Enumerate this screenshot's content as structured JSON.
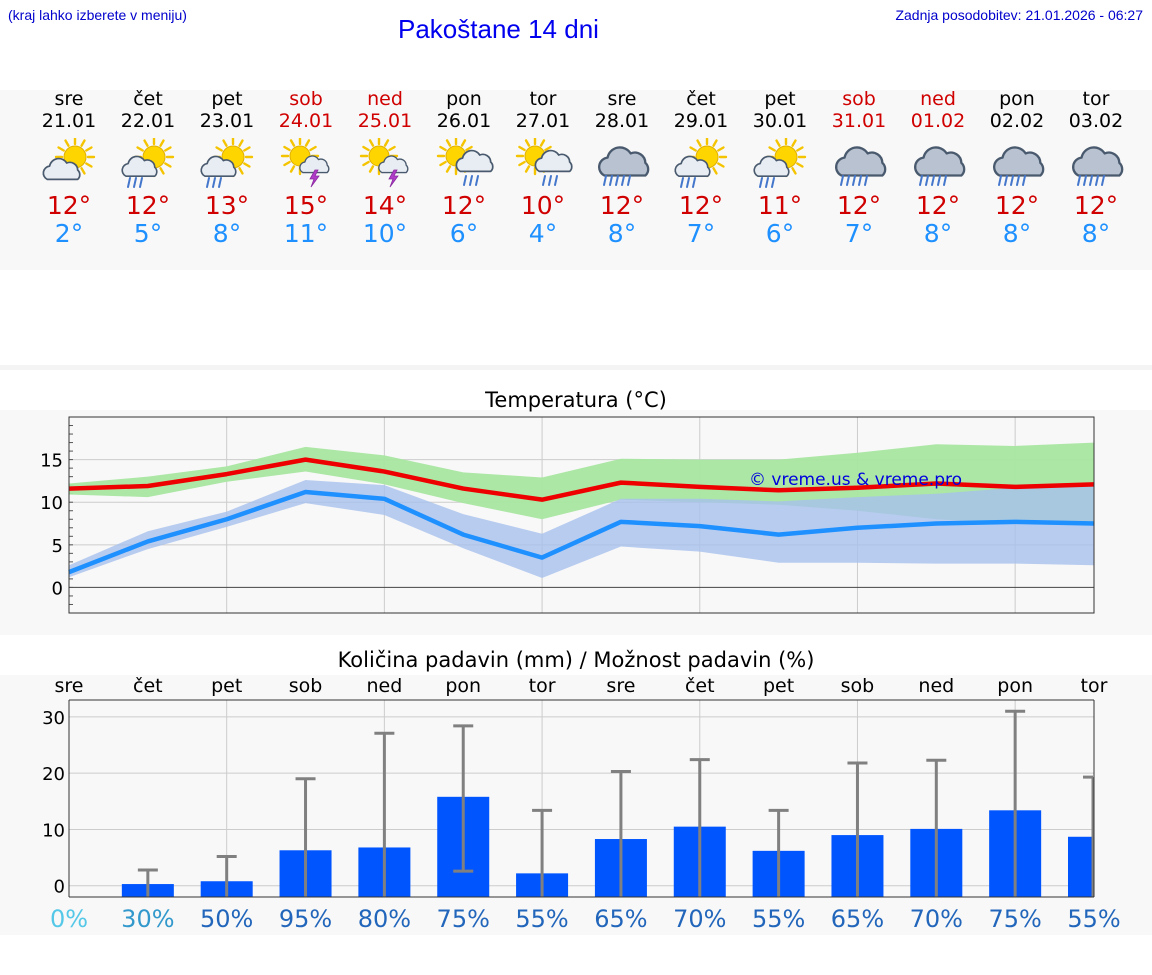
{
  "header": {
    "hint": "(kraj lahko izberete v meniju)",
    "title": "Pakoštane 14 dni",
    "updated": "Zadnja posodobitev: 21.01.2026 - 06:27"
  },
  "colors": {
    "max_line": "#ee0000",
    "min_line": "#1e90ff",
    "max_band": "#a8e6a0",
    "min_band": "#a8c0ee",
    "bar": "#0055ff",
    "weekend": "#d00000"
  },
  "days": [
    {
      "name": "sre",
      "date": "21.01",
      "weekend": false,
      "icon": "partly-cloudy-icon",
      "max": "12°",
      "min": "2°"
    },
    {
      "name": "čet",
      "date": "22.01",
      "weekend": false,
      "icon": "partly-cloudy-rain-icon",
      "max": "12°",
      "min": "5°"
    },
    {
      "name": "pet",
      "date": "23.01",
      "weekend": false,
      "icon": "partly-cloudy-rain-icon",
      "max": "13°",
      "min": "8°"
    },
    {
      "name": "sob",
      "date": "24.01",
      "weekend": true,
      "icon": "sun-thunderstorm-icon",
      "max": "15°",
      "min": "11°"
    },
    {
      "name": "ned",
      "date": "25.01",
      "weekend": true,
      "icon": "sun-thunderstorm-icon",
      "max": "14°",
      "min": "10°"
    },
    {
      "name": "pon",
      "date": "26.01",
      "weekend": false,
      "icon": "sun-cloud-rain-icon",
      "max": "12°",
      "min": "6°"
    },
    {
      "name": "tor",
      "date": "27.01",
      "weekend": false,
      "icon": "sun-cloud-rain-icon",
      "max": "10°",
      "min": "4°"
    },
    {
      "name": "sre",
      "date": "28.01",
      "weekend": false,
      "icon": "cloud-rain-icon",
      "max": "12°",
      "min": "8°"
    },
    {
      "name": "čet",
      "date": "29.01",
      "weekend": false,
      "icon": "partly-cloudy-rain-icon",
      "max": "12°",
      "min": "7°"
    },
    {
      "name": "pet",
      "date": "30.01",
      "weekend": false,
      "icon": "partly-cloudy-rain-icon",
      "max": "11°",
      "min": "6°"
    },
    {
      "name": "sob",
      "date": "31.01",
      "weekend": true,
      "icon": "cloud-rain-icon",
      "max": "12°",
      "min": "7°"
    },
    {
      "name": "ned",
      "date": "01.02",
      "weekend": true,
      "icon": "cloud-rain-icon",
      "max": "12°",
      "min": "8°"
    },
    {
      "name": "pon",
      "date": "02.02",
      "weekend": false,
      "icon": "cloud-rain-icon",
      "max": "12°",
      "min": "8°"
    },
    {
      "name": "tor",
      "date": "03.02",
      "weekend": false,
      "icon": "cloud-rain-icon",
      "max": "12°",
      "min": "8°"
    }
  ],
  "chart_data": [
    {
      "type": "line",
      "title": "Temperatura (°C)",
      "xlabel": "",
      "ylabel": "",
      "ylim": [
        -3,
        20
      ],
      "yticks": [
        0,
        5,
        10,
        15
      ],
      "watermark": "© vreme.us & vreme.pro",
      "x": [
        0,
        1,
        2,
        3,
        4,
        5,
        6,
        7,
        8,
        9,
        10,
        11,
        12,
        13
      ],
      "series": [
        {
          "name": "max",
          "values": [
            11.6,
            11.9,
            13.3,
            15.0,
            13.6,
            11.6,
            10.3,
            12.3,
            11.8,
            11.4,
            11.7,
            12.2,
            11.8,
            12.1
          ],
          "band_low": [
            10.9,
            10.6,
            12.4,
            13.6,
            12.1,
            9.9,
            8.0,
            10.3,
            10.0,
            9.7,
            9.0,
            8.0,
            7.5,
            7.3
          ],
          "band_high": [
            12.2,
            13.0,
            14.2,
            16.5,
            15.5,
            13.5,
            12.9,
            15.1,
            15.0,
            15.0,
            15.8,
            16.8,
            16.6,
            17.0
          ]
        },
        {
          "name": "min",
          "values": [
            1.8,
            5.4,
            8.0,
            11.2,
            10.4,
            6.2,
            3.5,
            7.7,
            7.2,
            6.2,
            7.0,
            7.5,
            7.7,
            7.5
          ],
          "band_low": [
            1.2,
            4.5,
            7.1,
            9.9,
            8.5,
            4.6,
            1.1,
            4.8,
            4.2,
            2.9,
            2.9,
            2.8,
            2.8,
            2.6
          ],
          "band_high": [
            2.6,
            6.6,
            8.9,
            12.6,
            12.0,
            8.6,
            6.3,
            10.4,
            10.4,
            10.1,
            10.6,
            11.0,
            11.7,
            12.0
          ]
        }
      ]
    },
    {
      "type": "bar",
      "title": "Količina padavin (mm) / Možnost padavin (%)",
      "categories": [
        "sre",
        "čet",
        "pet",
        "sob",
        "ned",
        "pon",
        "tor",
        "sre",
        "čet",
        "pet",
        "sob",
        "ned",
        "pon",
        "tor"
      ],
      "ylim": [
        -2,
        33
      ],
      "yticks": [
        0,
        10,
        20,
        30
      ],
      "values": [
        0,
        0.3,
        0.8,
        6.3,
        6.8,
        15.8,
        2.2,
        8.3,
        10.5,
        6.2,
        9.0,
        10.1,
        13.4,
        8.7
      ],
      "error_low": [
        0,
        0,
        0,
        0,
        0,
        2.6,
        0,
        0,
        0,
        0,
        0,
        0,
        0,
        0
      ],
      "error_high": [
        0,
        2.8,
        5.2,
        19.0,
        27.1,
        28.4,
        13.4,
        20.3,
        22.4,
        13.4,
        21.8,
        22.3,
        31.0,
        19.3
      ],
      "probability": [
        "0%",
        "30%",
        "50%",
        "95%",
        "80%",
        "75%",
        "55%",
        "65%",
        "70%",
        "55%",
        "65%",
        "70%",
        "75%",
        "55%"
      ]
    }
  ]
}
